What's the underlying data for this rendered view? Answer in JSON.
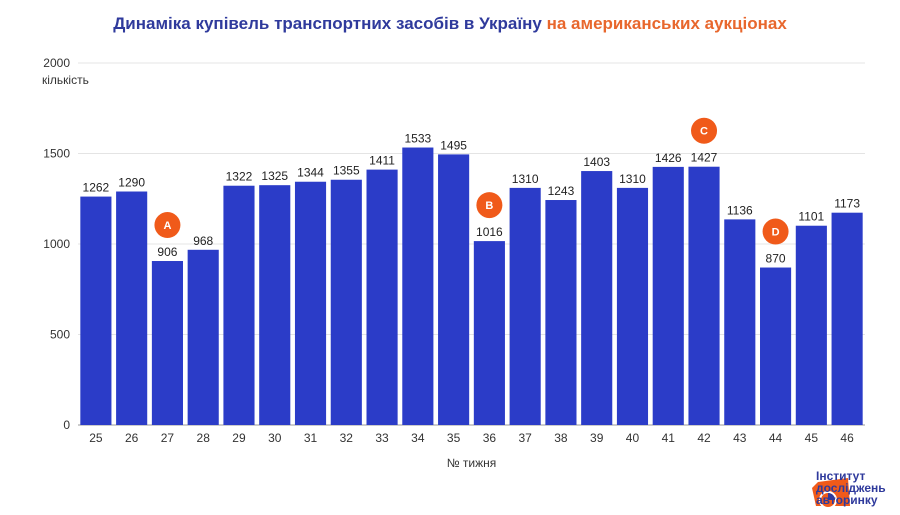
{
  "title_main": "Динаміка купівель транспортних засобів в Україну",
  "title_accent": "на американських аукціонах",
  "colors": {
    "bar": "#2b3cc8",
    "accent": "#f05a1a",
    "title": "#2f3a9c"
  },
  "logo": {
    "line1": "Інститут",
    "line2": "досліджень",
    "line3": "авторинку"
  },
  "chart_data": {
    "type": "bar",
    "title": "Динаміка купівель транспортних засобів в Україну на американських аукціонах",
    "xlabel": "№ тижня",
    "ylabel": "кількість",
    "ylim": [
      0,
      2000
    ],
    "yticks": [
      0,
      500,
      1000,
      1500,
      2000
    ],
    "grid": true,
    "categories": [
      "25",
      "26",
      "27",
      "28",
      "29",
      "30",
      "31",
      "32",
      "33",
      "34",
      "35",
      "36",
      "37",
      "38",
      "39",
      "40",
      "41",
      "42",
      "43",
      "44",
      "45",
      "46"
    ],
    "values": [
      1262,
      1290,
      906,
      968,
      1322,
      1325,
      1344,
      1355,
      1411,
      1533,
      1495,
      1016,
      1310,
      1243,
      1403,
      1310,
      1426,
      1427,
      1136,
      870,
      1101,
      1173
    ],
    "annotations": [
      {
        "label": "A",
        "category": "27"
      },
      {
        "label": "B",
        "category": "36"
      },
      {
        "label": "C",
        "category": "42"
      },
      {
        "label": "D",
        "category": "44"
      }
    ]
  }
}
